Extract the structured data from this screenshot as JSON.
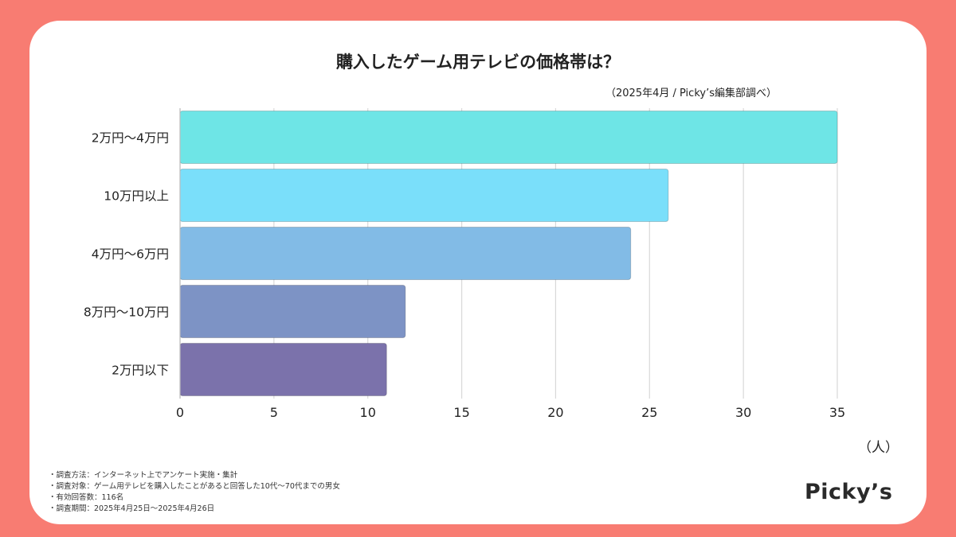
{
  "chart_data": {
    "type": "bar",
    "orientation": "horizontal",
    "title": "購入したゲーム用テレビの価格帯は？",
    "source": "（2025年4月 / Picky’s編集部調べ）",
    "categories": [
      "2万円〜4万円",
      "10万円以上",
      "4万円〜6万円",
      "8万円〜10万円",
      "2万円以下"
    ],
    "values": [
      35,
      26,
      24,
      12,
      11
    ],
    "bar_colors": [
      "#6ee5e6",
      "#7adffa",
      "#82bbe6",
      "#7d93c5",
      "#7b72ab"
    ],
    "xlim": [
      0,
      35
    ],
    "xticks": [
      0,
      5,
      10,
      15,
      20,
      25,
      30,
      35
    ],
    "unit_label": "（人）",
    "grid": "vertical"
  },
  "notes": [
    "・調査方法：インターネット上でアンケート実施・集計",
    "・調査対象：ゲーム用テレビを購入したことがあると回答した10代〜70代までの男女",
    "・有効回答数：116名",
    "・調査期間：2025年4月25日〜2025年4月26日"
  ],
  "logo": "Picky’s",
  "colors": {
    "background": "#f87c72",
    "card": "#ffffff",
    "grid": "#d9d9d9",
    "text": "#222222"
  }
}
